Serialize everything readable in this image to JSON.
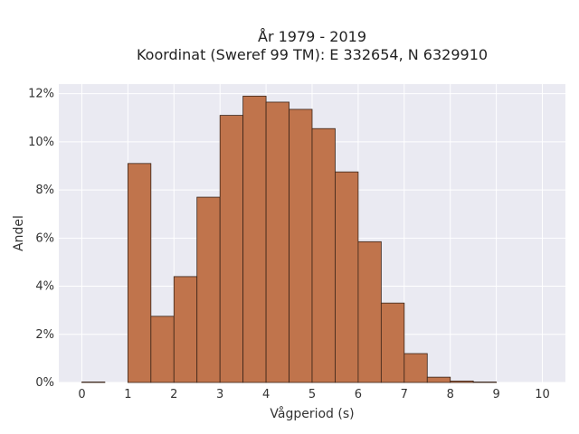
{
  "chart_data": {
    "type": "bar",
    "title": [
      "År 1979 - 2019",
      "Koordinat (Sweref 99 TM): E 332654, N 6329910"
    ],
    "xlabel": "Vågperiod (s)",
    "ylabel": "Andel",
    "bin_width": 0.5,
    "bin_starts": [
      0,
      0.5,
      1,
      1.5,
      2,
      2.5,
      3,
      3.5,
      4,
      4.5,
      5,
      5.5,
      6,
      6.5,
      7,
      7.5,
      8,
      8.5,
      9,
      9.5
    ],
    "values": [
      0.02,
      0,
      9.1,
      2.75,
      4.4,
      7.7,
      11.1,
      11.9,
      11.65,
      11.35,
      10.55,
      8.75,
      5.85,
      3.3,
      1.2,
      0.22,
      0.06,
      0.02,
      0,
      0
    ],
    "xlim": [
      -0.5,
      10.5
    ],
    "ylim": [
      0,
      12.4
    ],
    "xticks": [
      0,
      1,
      2,
      3,
      4,
      5,
      6,
      7,
      8,
      9,
      10
    ],
    "yticks": [
      0,
      2,
      4,
      6,
      8,
      10,
      12
    ],
    "ytick_suffix": "%",
    "grid": true,
    "colors": {
      "bar_fill": "#c0744c",
      "bar_edge": "#3a2418",
      "plot_bg": "#eaeaf2",
      "grid": "#ffffff"
    }
  }
}
